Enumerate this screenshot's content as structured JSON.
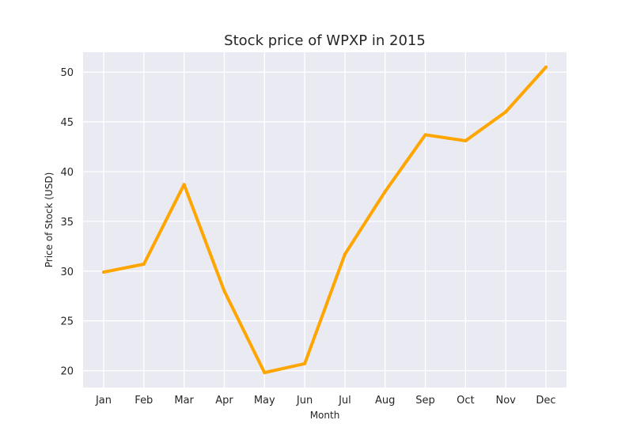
{
  "chart_data": {
    "type": "line",
    "title": "Stock price of WPXP in 2015",
    "xlabel": "Month",
    "ylabel": "Price of Stock (USD)",
    "categories": [
      "Jan",
      "Feb",
      "Mar",
      "Apr",
      "May",
      "Jun",
      "Jul",
      "Aug",
      "Sep",
      "Oct",
      "Nov",
      "Dec"
    ],
    "series": [
      {
        "values": [
          29.9,
          30.7,
          38.7,
          28.0,
          19.8,
          20.7,
          31.7,
          38.0,
          43.7,
          43.1,
          46.0,
          50.5
        ],
        "color": "#FFA500"
      }
    ],
    "yticks": [
      20,
      25,
      30,
      35,
      40,
      45,
      50
    ],
    "ylim": [
      18.3,
      52.0
    ],
    "grid": true,
    "background_color": "#EAEAF2",
    "grid_color": "#FFFFFF"
  }
}
